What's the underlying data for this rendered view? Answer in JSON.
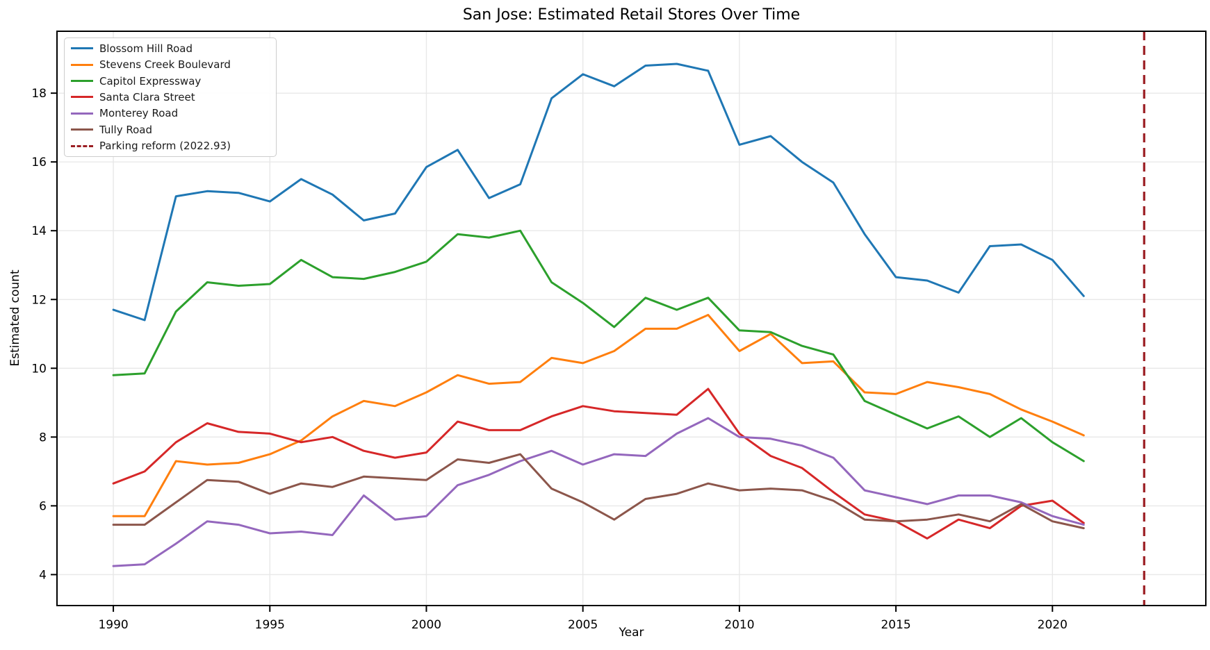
{
  "figure": {
    "title": "San Jose: Estimated Retail Stores Over Time",
    "xlabel": "Year",
    "ylabel": "Estimated count"
  },
  "chart_data": {
    "type": "line",
    "title": "San Jose: Estimated Retail Stores Over Time",
    "xlabel": "Year",
    "ylabel": "Estimated count",
    "grid": true,
    "legend_position": "upper left",
    "xlim": [
      1988.2,
      2024.9
    ],
    "ylim": [
      3.1,
      19.8
    ],
    "xticks": [
      1990,
      1995,
      2000,
      2005,
      2010,
      2015,
      2020
    ],
    "yticks": [
      4,
      6,
      8,
      10,
      12,
      14,
      16,
      18
    ],
    "x": [
      1990,
      1991,
      1992,
      1993,
      1994,
      1995,
      1996,
      1997,
      1998,
      1999,
      2000,
      2001,
      2002,
      2003,
      2004,
      2005,
      2006,
      2007,
      2008,
      2009,
      2010,
      2011,
      2012,
      2013,
      2014,
      2015,
      2016,
      2017,
      2018,
      2019,
      2020,
      2021
    ],
    "series": [
      {
        "name": "Blossom Hill Road",
        "color": "#1f77b4",
        "values": [
          11.7,
          11.4,
          15.0,
          15.15,
          15.1,
          14.85,
          15.5,
          15.05,
          14.3,
          14.5,
          15.85,
          16.35,
          14.95,
          15.35,
          17.85,
          18.55,
          18.2,
          18.8,
          18.85,
          18.65,
          16.5,
          16.75,
          16.0,
          15.4,
          13.9,
          12.65,
          12.55,
          12.2,
          13.55,
          13.6,
          13.15,
          12.1
        ]
      },
      {
        "name": "Stevens Creek Boulevard",
        "color": "#ff7f0e",
        "values": [
          5.7,
          5.7,
          7.3,
          7.2,
          7.25,
          7.5,
          7.9,
          8.6,
          9.05,
          8.9,
          9.3,
          9.8,
          9.55,
          9.6,
          10.3,
          10.15,
          10.5,
          11.15,
          11.15,
          11.55,
          10.5,
          11.0,
          10.15,
          10.2,
          9.3,
          9.25,
          9.6,
          9.45,
          9.25,
          8.8,
          8.45,
          8.05
        ]
      },
      {
        "name": "Capitol Expressway",
        "color": "#2ca02c",
        "values": [
          9.8,
          9.85,
          11.65,
          12.5,
          12.4,
          12.45,
          13.15,
          12.65,
          12.6,
          12.8,
          13.1,
          13.9,
          13.8,
          14.0,
          12.5,
          11.9,
          11.2,
          12.05,
          11.7,
          12.05,
          11.1,
          11.05,
          10.65,
          10.4,
          9.05,
          8.65,
          8.25,
          8.6,
          8.0,
          8.55,
          7.85,
          7.3
        ]
      },
      {
        "name": "Santa Clara Street",
        "color": "#d62728",
        "values": [
          6.65,
          7.0,
          7.85,
          8.4,
          8.15,
          8.1,
          7.85,
          8.0,
          7.6,
          7.4,
          7.55,
          8.45,
          8.2,
          8.2,
          8.6,
          8.9,
          8.75,
          8.7,
          8.65,
          9.4,
          8.1,
          7.45,
          7.1,
          6.4,
          5.75,
          5.55,
          5.05,
          5.6,
          5.35,
          6.0,
          6.15,
          5.5
        ]
      },
      {
        "name": "Monterey Road",
        "color": "#9467bd",
        "values": [
          4.25,
          4.3,
          4.9,
          5.55,
          5.45,
          5.2,
          5.25,
          5.15,
          6.3,
          5.6,
          5.7,
          6.6,
          6.9,
          7.3,
          7.6,
          7.2,
          7.5,
          7.45,
          8.1,
          8.55,
          8.0,
          7.95,
          7.75,
          7.4,
          6.45,
          6.25,
          6.05,
          6.3,
          6.3,
          6.1,
          5.7,
          5.45
        ]
      },
      {
        "name": "Tully Road",
        "color": "#8c564b",
        "values": [
          5.45,
          5.45,
          6.1,
          6.75,
          6.7,
          6.35,
          6.65,
          6.55,
          6.85,
          6.8,
          6.75,
          7.35,
          7.25,
          7.5,
          6.5,
          6.1,
          5.6,
          6.2,
          6.35,
          6.65,
          6.45,
          6.5,
          6.45,
          6.15,
          5.6,
          5.55,
          5.6,
          5.75,
          5.55,
          6.05,
          5.55,
          5.35
        ]
      }
    ],
    "vline": {
      "x": 2022.93,
      "label": "Parking reform (2022.93)",
      "color": "#9b1e23",
      "style": "dashed"
    },
    "legend_entries": [
      "Blossom Hill Road",
      "Stevens Creek Boulevard",
      "Capitol Expressway",
      "Santa Clara Street",
      "Monterey Road",
      "Tully Road",
      "Parking reform (2022.93)"
    ]
  },
  "style": {
    "grid_color": "#e8e8e8",
    "spine_color": "#000000",
    "tick_label_color": "#000000",
    "background": "#ffffff"
  }
}
